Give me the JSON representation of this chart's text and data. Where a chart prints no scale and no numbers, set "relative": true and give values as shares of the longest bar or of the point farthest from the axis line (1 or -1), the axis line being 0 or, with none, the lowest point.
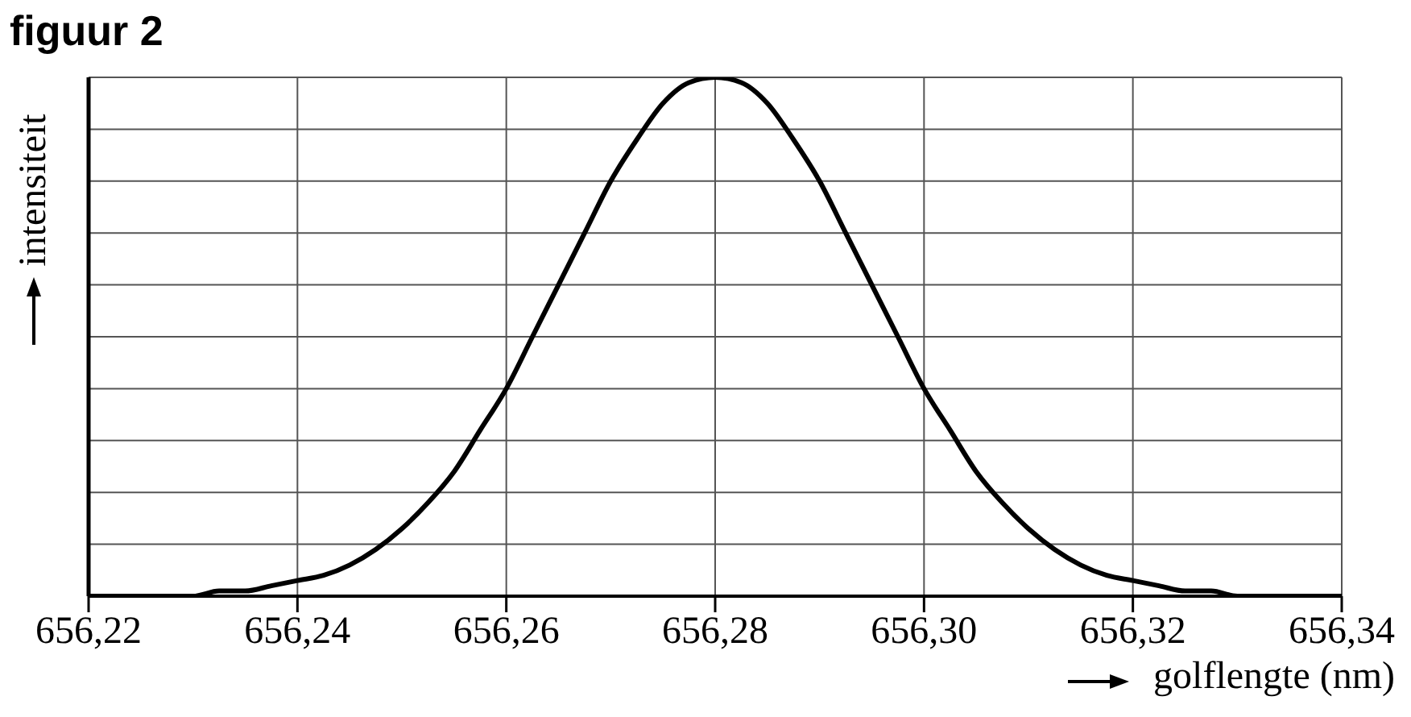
{
  "chart_data": {
    "type": "line",
    "title": "figuur 2",
    "xlabel": "golflengte (nm)",
    "ylabel": "intensiteit",
    "relative": true,
    "x": [
      656.22,
      656.2225,
      656.225,
      656.2275,
      656.23,
      656.2325,
      656.235,
      656.2375,
      656.24,
      656.2425,
      656.245,
      656.2475,
      656.25,
      656.2525,
      656.255,
      656.2575,
      656.26,
      656.2625,
      656.265,
      656.2675,
      656.27,
      656.2725,
      656.275,
      656.2775,
      656.28,
      656.2825,
      656.285,
      656.2875,
      656.29,
      656.2925,
      656.295,
      656.2975,
      656.3,
      656.3025,
      656.305,
      656.3075,
      656.31,
      656.3125,
      656.315,
      656.3175,
      656.32,
      656.3225,
      656.325,
      656.3275,
      656.33,
      656.3325,
      656.335,
      656.3375,
      656.34
    ],
    "series": [
      {
        "color": "#000000",
        "values": [
          0,
          0,
          0,
          0,
          0,
          0.01,
          0.01,
          0.02,
          0.03,
          0.04,
          0.06,
          0.09,
          0.13,
          0.18,
          0.24,
          0.32,
          0.4,
          0.5,
          0.6,
          0.7,
          0.8,
          0.88,
          0.95,
          0.99,
          1,
          0.99,
          0.95,
          0.88,
          0.8,
          0.7,
          0.6,
          0.5,
          0.4,
          0.32,
          0.24,
          0.18,
          0.13,
          0.09,
          0.06,
          0.04,
          0.03,
          0.02,
          0.01,
          0.01,
          0,
          0,
          0,
          0,
          0
        ]
      }
    ],
    "xlim": [
      656.22,
      656.34
    ],
    "xticks": [
      {
        "value": 656.22,
        "label": "656,22"
      },
      {
        "value": 656.24,
        "label": "656,24"
      },
      {
        "value": 656.26,
        "label": "656,26"
      },
      {
        "value": 656.28,
        "label": "656,28"
      },
      {
        "value": 656.3,
        "label": "656,30"
      },
      {
        "value": 656.32,
        "label": "656,32"
      },
      {
        "value": 656.34,
        "label": "656,34"
      }
    ],
    "grid": true,
    "marker": "none",
    "line_style": "solid"
  }
}
